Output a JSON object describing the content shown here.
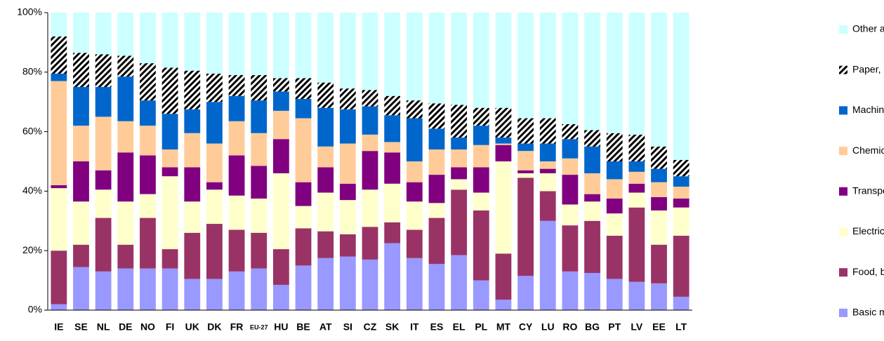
{
  "chart_data": {
    "type": "stacked_bar",
    "categories": [
      "IE",
      "SE",
      "NL",
      "DE",
      "NO",
      "FI",
      "UK",
      "DK",
      "FR",
      "EU-27",
      "HU",
      "BE",
      "AT",
      "SI",
      "CZ",
      "SK",
      "IT",
      "ES",
      "EL",
      "PL",
      "MT",
      "CY",
      "LU",
      "RO",
      "BG",
      "PT",
      "LV",
      "EE",
      "LT"
    ],
    "series": [
      {
        "name": "Basic metals & metal products",
        "color": "#9999ff",
        "values": [
          2,
          14.5,
          13,
          14,
          14,
          14,
          10.5,
          10.5,
          13,
          14,
          8.5,
          15,
          17.5,
          18,
          17,
          22.5,
          17.5,
          15.5,
          18.5,
          10,
          3.5,
          11.5,
          30,
          13,
          12.5,
          10.5,
          9.5,
          9,
          4.5
        ]
      },
      {
        "name": "Food, beverage & tobacco",
        "color": "#993366",
        "values": [
          18,
          7.5,
          18,
          8,
          17,
          6.5,
          15.5,
          18.5,
          14,
          12,
          12,
          12.5,
          9,
          7.5,
          11,
          7,
          9.5,
          15.5,
          22,
          23.5,
          15.5,
          33,
          10,
          15.5,
          17.5,
          14.5,
          25,
          13,
          20.5
        ]
      },
      {
        "name": "Electrical & optical equipment",
        "color": "#ffffcc",
        "values": [
          21,
          14.5,
          9.5,
          14.5,
          8,
          24.5,
          10.5,
          11.5,
          11.5,
          11.5,
          25.5,
          7.5,
          13,
          11.5,
          12.5,
          13,
          9.5,
          5,
          3.5,
          6,
          31,
          1.5,
          6,
          7,
          6.5,
          7.5,
          5,
          11.5,
          9.5
        ]
      },
      {
        "name": "Transport equipment",
        "color": "#800080",
        "values": [
          1,
          13.5,
          6.5,
          16.5,
          13,
          3,
          11.5,
          2.5,
          13.5,
          11,
          11.5,
          8,
          8.5,
          5.5,
          13,
          10.5,
          6.5,
          9.5,
          4,
          8.5,
          5.5,
          1,
          1.5,
          10,
          2.5,
          5,
          3,
          4.5,
          3
        ]
      },
      {
        "name": "Chemicals & fibres",
        "color": "#ffcc99",
        "values": [
          35,
          12,
          18,
          10.5,
          10,
          6,
          11.5,
          13,
          11.5,
          11,
          9.5,
          21.5,
          7,
          13.5,
          5.5,
          3.5,
          7,
          8.5,
          6,
          7.5,
          0.5,
          6.5,
          2.5,
          5.5,
          7,
          6.5,
          4,
          5,
          4
        ]
      },
      {
        "name": "Machinery & equipment",
        "color": "#0066cc",
        "values": [
          2.5,
          13,
          10,
          15,
          8.5,
          12,
          8,
          14,
          8.5,
          11,
          6.5,
          6.5,
          13,
          11.5,
          9.5,
          9,
          14.5,
          7,
          4,
          6.5,
          2,
          2.5,
          6,
          6.5,
          9,
          6,
          3.5,
          4.5,
          3.5
        ]
      },
      {
        "name": "Paper, publishing & printing",
        "color": "#000000",
        "pattern": "hatch",
        "values": [
          12.5,
          11.5,
          11,
          7,
          12.5,
          15.5,
          13,
          9.5,
          7,
          8.5,
          4.5,
          7,
          8.5,
          7,
          5.5,
          6.5,
          6,
          8.5,
          11,
          6,
          10,
          8.5,
          8.5,
          5,
          5.5,
          9.5,
          9,
          7.5,
          5.5
        ]
      },
      {
        "name": "Other activities",
        "color": "#ccffff",
        "values": [
          8,
          13.5,
          14,
          14.5,
          17,
          18.5,
          19.5,
          20.5,
          21,
          21,
          22,
          22,
          23.5,
          25.5,
          26,
          28,
          29.5,
          30.5,
          31,
          32,
          32,
          35.5,
          35.5,
          37.5,
          39.5,
          40.5,
          41,
          45,
          49.5
        ]
      }
    ],
    "ylim": [
      0,
      100
    ],
    "yticks": [
      {
        "value": 0,
        "label": "0%"
      },
      {
        "value": 20,
        "label": "20%"
      },
      {
        "value": 40,
        "label": "40%"
      },
      {
        "value": 60,
        "label": "60%"
      },
      {
        "value": 80,
        "label": "80%"
      },
      {
        "value": 100,
        "label": "100%"
      }
    ],
    "grid": false,
    "legend": "right"
  }
}
